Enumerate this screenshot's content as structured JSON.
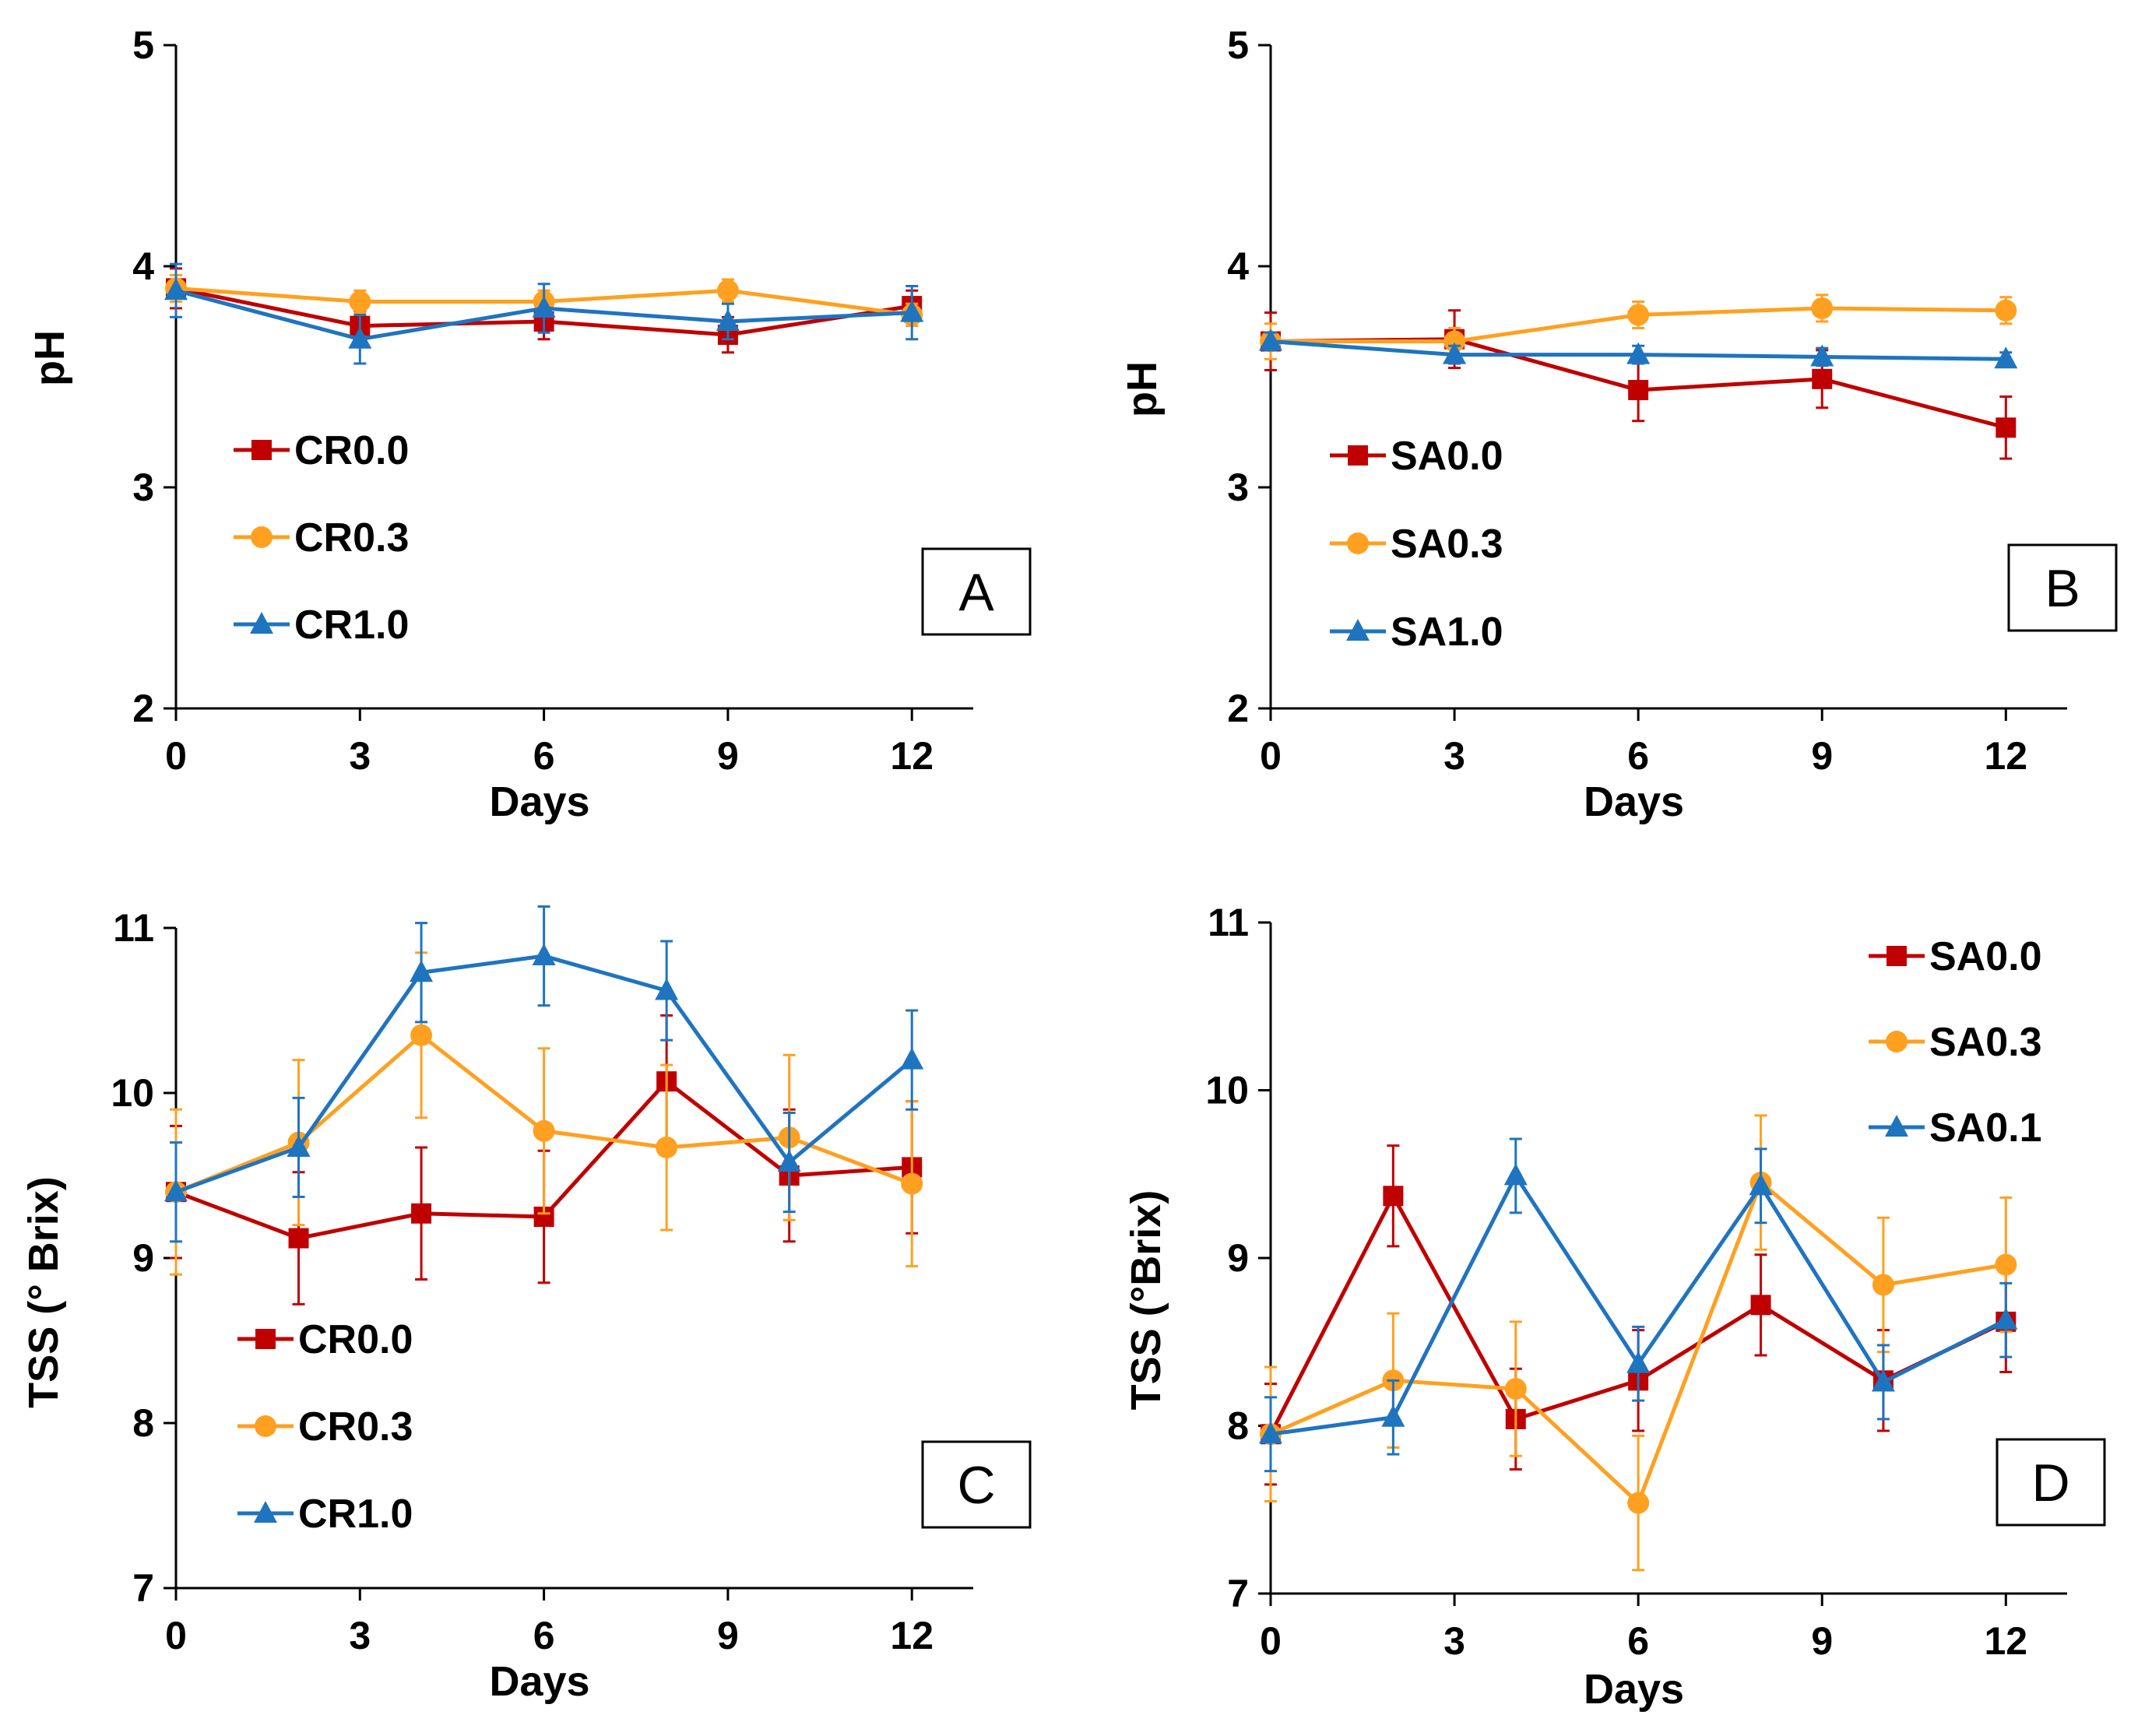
{
  "chart_data": [
    {
      "type": "line",
      "panel": "A",
      "xlabel": "Days",
      "ylabel": "pH",
      "xticks": [
        0,
        3,
        6,
        9,
        12
      ],
      "yticks": [
        2,
        3,
        4,
        5
      ],
      "xlim": [
        0,
        13
      ],
      "ylim": [
        2,
        5
      ],
      "legend_position": "bottom-left",
      "series": [
        {
          "name": "CR0.0",
          "color": "#C00000",
          "marker": "square",
          "x": [
            0,
            3,
            6,
            9,
            12
          ],
          "y": [
            3.9,
            3.73,
            3.75,
            3.69,
            3.82
          ],
          "err": [
            0.09,
            0.07,
            0.08,
            0.08,
            0.07
          ]
        },
        {
          "name": "CR0.3",
          "color": "#FFA020",
          "marker": "circle",
          "x": [
            0,
            3,
            6,
            9,
            12
          ],
          "y": [
            3.9,
            3.84,
            3.84,
            3.89,
            3.78
          ],
          "err": [
            0.06,
            0.05,
            0.05,
            0.05,
            0.05
          ]
        },
        {
          "name": "CR1.0",
          "color": "#1F74C0",
          "marker": "triangle",
          "x": [
            0,
            3,
            6,
            9,
            12
          ],
          "y": [
            3.89,
            3.67,
            3.81,
            3.75,
            3.79
          ],
          "err": [
            0.12,
            0.11,
            0.11,
            0.08,
            0.12
          ]
        }
      ]
    },
    {
      "type": "line",
      "panel": "B",
      "xlabel": "Days",
      "ylabel": "pH",
      "xticks": [
        0,
        3,
        6,
        9,
        12
      ],
      "yticks": [
        2,
        3,
        4,
        5
      ],
      "xlim": [
        0,
        13
      ],
      "ylim": [
        2,
        5
      ],
      "legend_position": "bottom-left",
      "series": [
        {
          "name": "SA0.0",
          "color": "#C00000",
          "marker": "square",
          "x": [
            0,
            3,
            6,
            9,
            12
          ],
          "y": [
            3.66,
            3.67,
            3.44,
            3.49,
            3.27
          ],
          "err": [
            0.13,
            0.13,
            0.14,
            0.13,
            0.14
          ]
        },
        {
          "name": "SA0.3",
          "color": "#FFA020",
          "marker": "circle",
          "x": [
            0,
            3,
            6,
            9,
            12
          ],
          "y": [
            3.66,
            3.66,
            3.78,
            3.81,
            3.8
          ],
          "err": [
            0.08,
            0.06,
            0.06,
            0.06,
            0.06
          ]
        },
        {
          "name": "SA1.0",
          "color": "#1F74C0",
          "marker": "triangle",
          "x": [
            0,
            3,
            6,
            9,
            12
          ],
          "y": [
            3.66,
            3.6,
            3.6,
            3.59,
            3.58
          ],
          "err": [
            0.04,
            0.04,
            0.04,
            0.04,
            0.03
          ]
        }
      ]
    },
    {
      "type": "line",
      "panel": "C",
      "xlabel": "Days",
      "ylabel": "TSS (° Brix)",
      "xticks": [
        0,
        3,
        6,
        9,
        12
      ],
      "yticks": [
        7,
        8,
        9,
        10,
        11
      ],
      "xlim": [
        0,
        13
      ],
      "ylim": [
        7,
        11
      ],
      "legend_position": "bottom-left",
      "series": [
        {
          "name": "CR0.0",
          "color": "#C00000",
          "marker": "square",
          "x": [
            0,
            2,
            4,
            6,
            8,
            10,
            12
          ],
          "y": [
            9.4,
            9.12,
            9.27,
            9.25,
            10.07,
            9.5,
            9.55
          ],
          "err": [
            0.4,
            0.4,
            0.4,
            0.4,
            0.4,
            0.4,
            0.4
          ]
        },
        {
          "name": "CR0.3",
          "color": "#FFA020",
          "marker": "circle",
          "x": [
            0,
            2,
            4,
            6,
            8,
            10,
            12
          ],
          "y": [
            9.4,
            9.7,
            10.35,
            9.77,
            9.67,
            9.73,
            9.45
          ],
          "err": [
            0.5,
            0.5,
            0.5,
            0.5,
            0.5,
            0.5,
            0.5
          ]
        },
        {
          "name": "CR1.0",
          "color": "#1F74C0",
          "marker": "triangle",
          "x": [
            0,
            2,
            4,
            6,
            8,
            10,
            12
          ],
          "y": [
            9.4,
            9.67,
            10.73,
            10.83,
            10.62,
            9.58,
            10.2
          ],
          "err": [
            0.3,
            0.3,
            0.3,
            0.3,
            0.3,
            0.3,
            0.3
          ]
        }
      ]
    },
    {
      "type": "line",
      "panel": "D",
      "xlabel": "Days",
      "ylabel": "TSS (°Brix)",
      "xticks": [
        0,
        3,
        6,
        9,
        12
      ],
      "yticks": [
        7,
        8,
        9,
        10,
        11
      ],
      "xlim": [
        0,
        13
      ],
      "ylim": [
        7,
        11
      ],
      "legend_position": "top-right",
      "series": [
        {
          "name": "SA0.0",
          "color": "#C00000",
          "marker": "square",
          "x": [
            0,
            2,
            4,
            6,
            8,
            10,
            12
          ],
          "y": [
            7.95,
            9.37,
            8.04,
            8.27,
            8.72,
            8.27,
            8.62
          ],
          "err": [
            0.3,
            0.3,
            0.3,
            0.3,
            0.3,
            0.3,
            0.3
          ]
        },
        {
          "name": "SA0.3",
          "color": "#FFA020",
          "marker": "circle",
          "x": [
            0,
            2,
            4,
            6,
            8,
            10,
            12
          ],
          "y": [
            7.95,
            8.27,
            8.22,
            7.54,
            9.45,
            8.84,
            8.96
          ],
          "err": [
            0.4,
            0.4,
            0.4,
            0.4,
            0.4,
            0.4,
            0.4
          ]
        },
        {
          "name": "SA0.1",
          "color": "#1F74C0",
          "marker": "triangle",
          "x": [
            0,
            2,
            4,
            6,
            8,
            10,
            12
          ],
          "y": [
            7.95,
            8.05,
            9.49,
            8.37,
            9.43,
            8.26,
            8.63
          ],
          "err": [
            0.22,
            0.22,
            0.22,
            0.22,
            0.22,
            0.22,
            0.22
          ]
        }
      ]
    }
  ]
}
